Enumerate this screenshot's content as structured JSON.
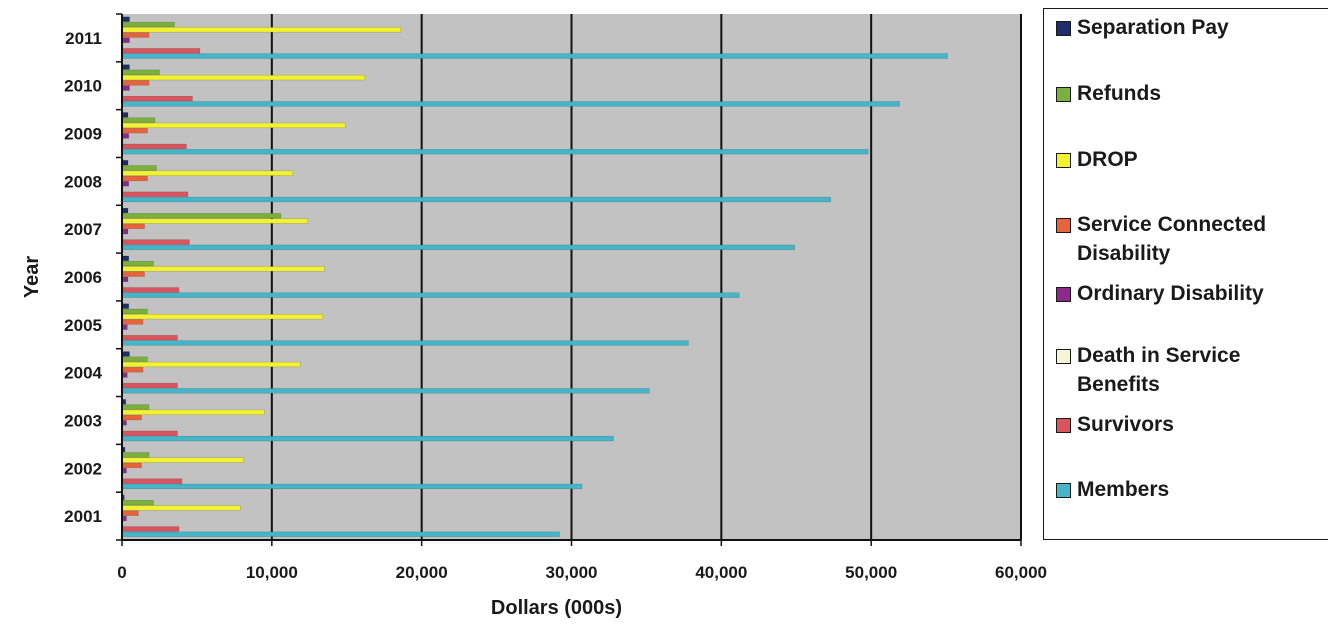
{
  "chart_data": {
    "type": "bar",
    "orientation": "horizontal",
    "xlabel": "Dollars (000s)",
    "ylabel": "Year",
    "xlim": [
      0,
      60000
    ],
    "x_ticks": [
      "0",
      "10,000",
      "20,000",
      "30,000",
      "40,000",
      "50,000",
      "60,000"
    ],
    "x_tick_values": [
      0,
      10000,
      20000,
      30000,
      40000,
      50000,
      60000
    ],
    "grid": true,
    "legend_position": "right",
    "categories": [
      "2001",
      "2002",
      "2003",
      "2004",
      "2005",
      "2006",
      "2007",
      "2008",
      "2009",
      "2010",
      "2011"
    ],
    "series": [
      {
        "name": "Separation Pay",
        "color": "#1f2d6b",
        "values": [
          150,
          200,
          250,
          500,
          450,
          450,
          400,
          400,
          400,
          500,
          500
        ]
      },
      {
        "name": "Refunds",
        "color": "#7ab03c",
        "values": [
          2100,
          1800,
          1800,
          1700,
          1700,
          2100,
          10600,
          2300,
          2200,
          2500,
          3500
        ]
      },
      {
        "name": "DROP",
        "color": "#f2f230",
        "values": [
          7900,
          8100,
          9500,
          11900,
          13400,
          13500,
          12400,
          11400,
          14900,
          16200,
          18600
        ]
      },
      {
        "name": "Service Connected Disability",
        "color": "#e8633a",
        "values": [
          1100,
          1300,
          1300,
          1400,
          1400,
          1500,
          1500,
          1700,
          1700,
          1800,
          1800
        ]
      },
      {
        "name": "Ordinary Disability",
        "color": "#8c2a8c",
        "values": [
          300,
          300,
          300,
          350,
          350,
          400,
          400,
          450,
          450,
          500,
          500
        ]
      },
      {
        "name": "Death in Service Benefits",
        "color": "#f5f5d8",
        "values": [
          100,
          100,
          100,
          100,
          100,
          100,
          100,
          100,
          100,
          100,
          100
        ]
      },
      {
        "name": "Survivors",
        "color": "#d9545e",
        "values": [
          3800,
          4000,
          3700,
          3700,
          3700,
          3800,
          4500,
          4400,
          4300,
          4700,
          5200
        ]
      },
      {
        "name": "Members",
        "color": "#45b5c9",
        "values": [
          29200,
          30700,
          32800,
          35200,
          37800,
          41200,
          44900,
          47300,
          49800,
          51900,
          55100
        ]
      }
    ]
  },
  "colors": {
    "plot_bg": "#c2c2c2",
    "grid": "#111111",
    "text": "#1a1a1a"
  }
}
